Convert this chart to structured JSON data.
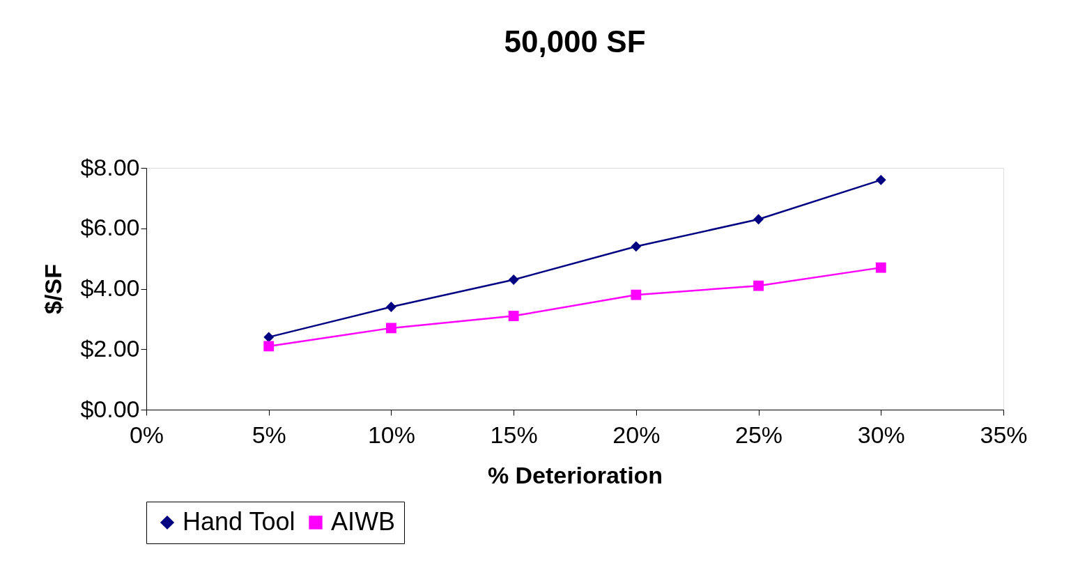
{
  "chart_data": {
    "type": "line",
    "title": "50,000 SF",
    "xlabel": "% Deterioration",
    "ylabel": "$/SF",
    "x": [
      5,
      10,
      15,
      20,
      25,
      30
    ],
    "series": [
      {
        "name": "Hand Tool",
        "color": "#000080",
        "marker": "diamond",
        "values": [
          2.4,
          3.4,
          4.3,
          5.4,
          6.3,
          7.6
        ]
      },
      {
        "name": "AIWB",
        "color": "#ff00ff",
        "marker": "square",
        "values": [
          2.1,
          2.7,
          3.1,
          3.8,
          4.1,
          4.7
        ]
      }
    ],
    "xlim": [
      0,
      35
    ],
    "xticks": [
      {
        "value": 0,
        "label": "0%"
      },
      {
        "value": 5,
        "label": "5%"
      },
      {
        "value": 10,
        "label": "10%"
      },
      {
        "value": 15,
        "label": "15%"
      },
      {
        "value": 20,
        "label": "20%"
      },
      {
        "value": 25,
        "label": "25%"
      },
      {
        "value": 30,
        "label": "30%"
      },
      {
        "value": 35,
        "label": "35%"
      }
    ],
    "ylim": [
      0,
      8
    ],
    "yticks": [
      {
        "value": 0,
        "label": "$0.00"
      },
      {
        "value": 2,
        "label": "$2.00"
      },
      {
        "value": 4,
        "label": "$4.00"
      },
      {
        "value": 6,
        "label": "$6.00"
      },
      {
        "value": 8,
        "label": "$8.00"
      }
    ],
    "grid": false,
    "legend": "bottom",
    "line_style": "solid"
  }
}
